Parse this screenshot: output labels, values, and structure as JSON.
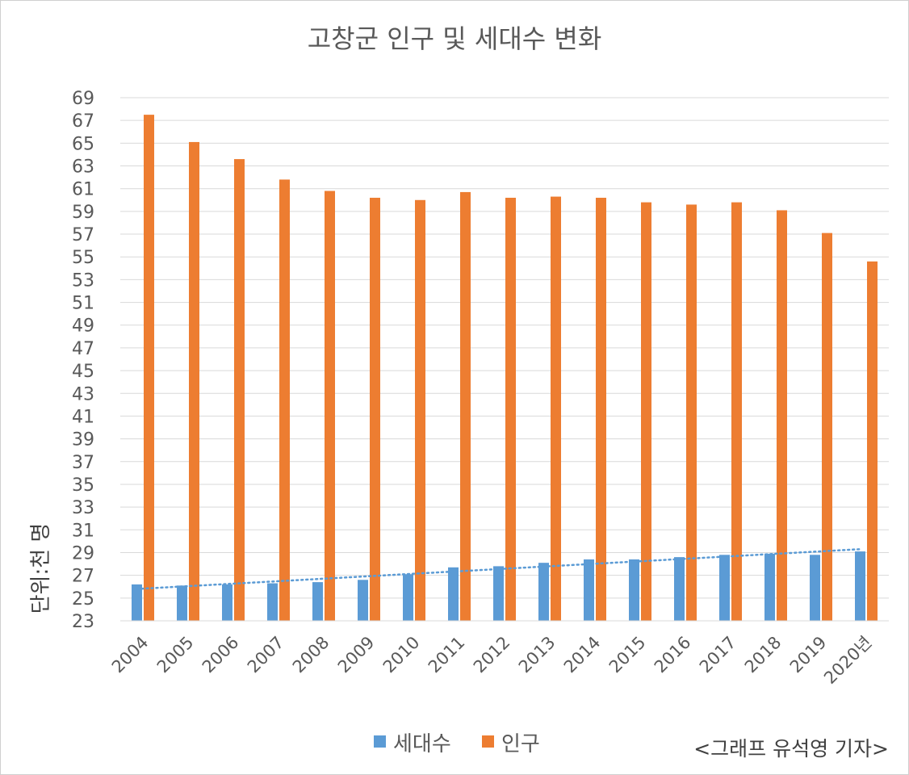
{
  "chart_data": {
    "type": "bar",
    "title": "고창군 인구 및 세대수 변화",
    "ylabel": "단위:천 명",
    "credit": "<그래프 유석영 기자>",
    "categories": [
      "2004",
      "2005",
      "2006",
      "2007",
      "2008",
      "2009",
      "2010",
      "2011",
      "2012",
      "2013",
      "2014",
      "2015",
      "2016",
      "2017",
      "2018",
      "2019",
      "2020년"
    ],
    "ylim": [
      23,
      69
    ],
    "yticks": [
      23,
      25,
      27,
      29,
      31,
      33,
      35,
      37,
      39,
      41,
      43,
      45,
      47,
      49,
      51,
      53,
      55,
      57,
      59,
      61,
      63,
      65,
      67,
      69
    ],
    "grid": true,
    "legend_position": "bottom",
    "series": [
      {
        "name": "세대수",
        "color": "#5B9BD5",
        "values": [
          26.2,
          26.1,
          26.2,
          26.3,
          26.4,
          26.6,
          27.1,
          27.7,
          27.8,
          28.1,
          28.4,
          28.4,
          28.6,
          28.8,
          28.9,
          28.8,
          29.1
        ]
      },
      {
        "name": "인구",
        "color": "#ED7D31",
        "values": [
          67.5,
          65.1,
          63.6,
          61.8,
          60.8,
          60.2,
          60.0,
          60.7,
          60.2,
          60.3,
          60.2,
          59.8,
          59.6,
          59.8,
          59.1,
          57.1,
          54.6
        ]
      }
    ],
    "trendline": {
      "series": "세대수",
      "type": "linear",
      "color": "#5B9BD5",
      "style": "dotted",
      "start": 25.8,
      "end": 29.3
    }
  }
}
